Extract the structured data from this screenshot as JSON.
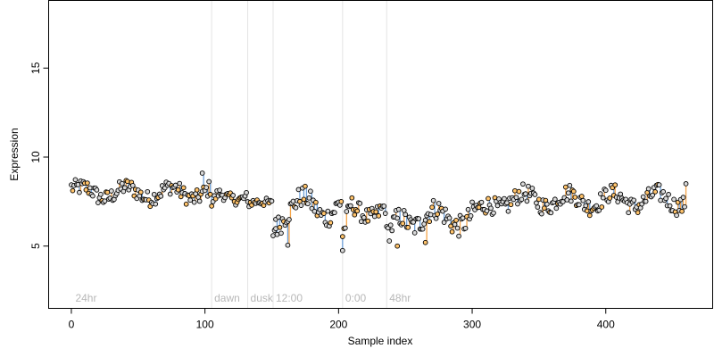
{
  "chart_data": {
    "type": "scatter",
    "title": "",
    "xlabel": "Sample index",
    "ylabel": "Expression",
    "xlim": [
      -17,
      480
    ],
    "ylim": [
      1.5,
      18.8
    ],
    "x_ticks": [
      0,
      100,
      200,
      300,
      400
    ],
    "y_ticks": [
      5,
      10,
      15
    ],
    "grid": false,
    "legend": "none",
    "colors": {
      "point_fill_primary": "#d9d9d9",
      "point_fill_secondary": "#ffc36b",
      "point_stroke": "#000000",
      "segment_orange": "#f5a54a",
      "segment_blue": "#6fa0d8",
      "divider": "#e4e4e4",
      "annotation": "#b8b8b8"
    },
    "dividers": [
      {
        "x": 105,
        "label": "dawn"
      },
      {
        "x": 132,
        "label": "dusk"
      },
      {
        "x": 151,
        "label": "12:00"
      },
      {
        "x": 203,
        "label": "0:00"
      },
      {
        "x": 236,
        "label": "48hr"
      }
    ],
    "start_label": {
      "x": 3,
      "label": "24hr"
    },
    "series": [
      {
        "segments": [
          {
            "x0": 0,
            "y0": 8.3,
            "x1": 105,
            "y1": 8.2,
            "mean": 8.0,
            "amp": 0.35,
            "noise": 0.45
          },
          {
            "x0": 105,
            "y0": 7.4,
            "x1": 132,
            "y1": 8.0,
            "mean": 7.8,
            "amp": 0.2,
            "noise": 0.3
          },
          {
            "x0": 132,
            "y0": 7.4,
            "x1": 151,
            "y1": 7.3,
            "mean": 7.4,
            "amp": 0.1,
            "noise": 0.25
          },
          {
            "x0": 151,
            "y0": 5.8,
            "x1": 203,
            "y1": 7.4,
            "mean": 7.2,
            "amp": 0.6,
            "noise": 0.6
          },
          {
            "x0": 203,
            "y0": 5.6,
            "x1": 236,
            "y1": 7.4,
            "mean": 7.0,
            "amp": 0.4,
            "noise": 0.5
          },
          {
            "x0": 236,
            "y0": 5.6,
            "x1": 300,
            "y1": 7.6,
            "mean": 6.6,
            "amp": 0.5,
            "noise": 0.6
          },
          {
            "x0": 300,
            "y0": 7.0,
            "x1": 460,
            "y1": 7.7,
            "mean": 7.6,
            "amp": 0.4,
            "noise": 0.5
          }
        ],
        "notable_points": [
          {
            "x": 98,
            "y": 9.1
          },
          {
            "x": 203,
            "y": 4.75
          },
          {
            "x": 162,
            "y": 5.05
          },
          {
            "x": 265,
            "y": 5.2
          },
          {
            "x": 244,
            "y": 5.0
          },
          {
            "x": 460,
            "y": 8.5
          },
          {
            "x": 153,
            "y": 6.5
          }
        ]
      }
    ]
  }
}
